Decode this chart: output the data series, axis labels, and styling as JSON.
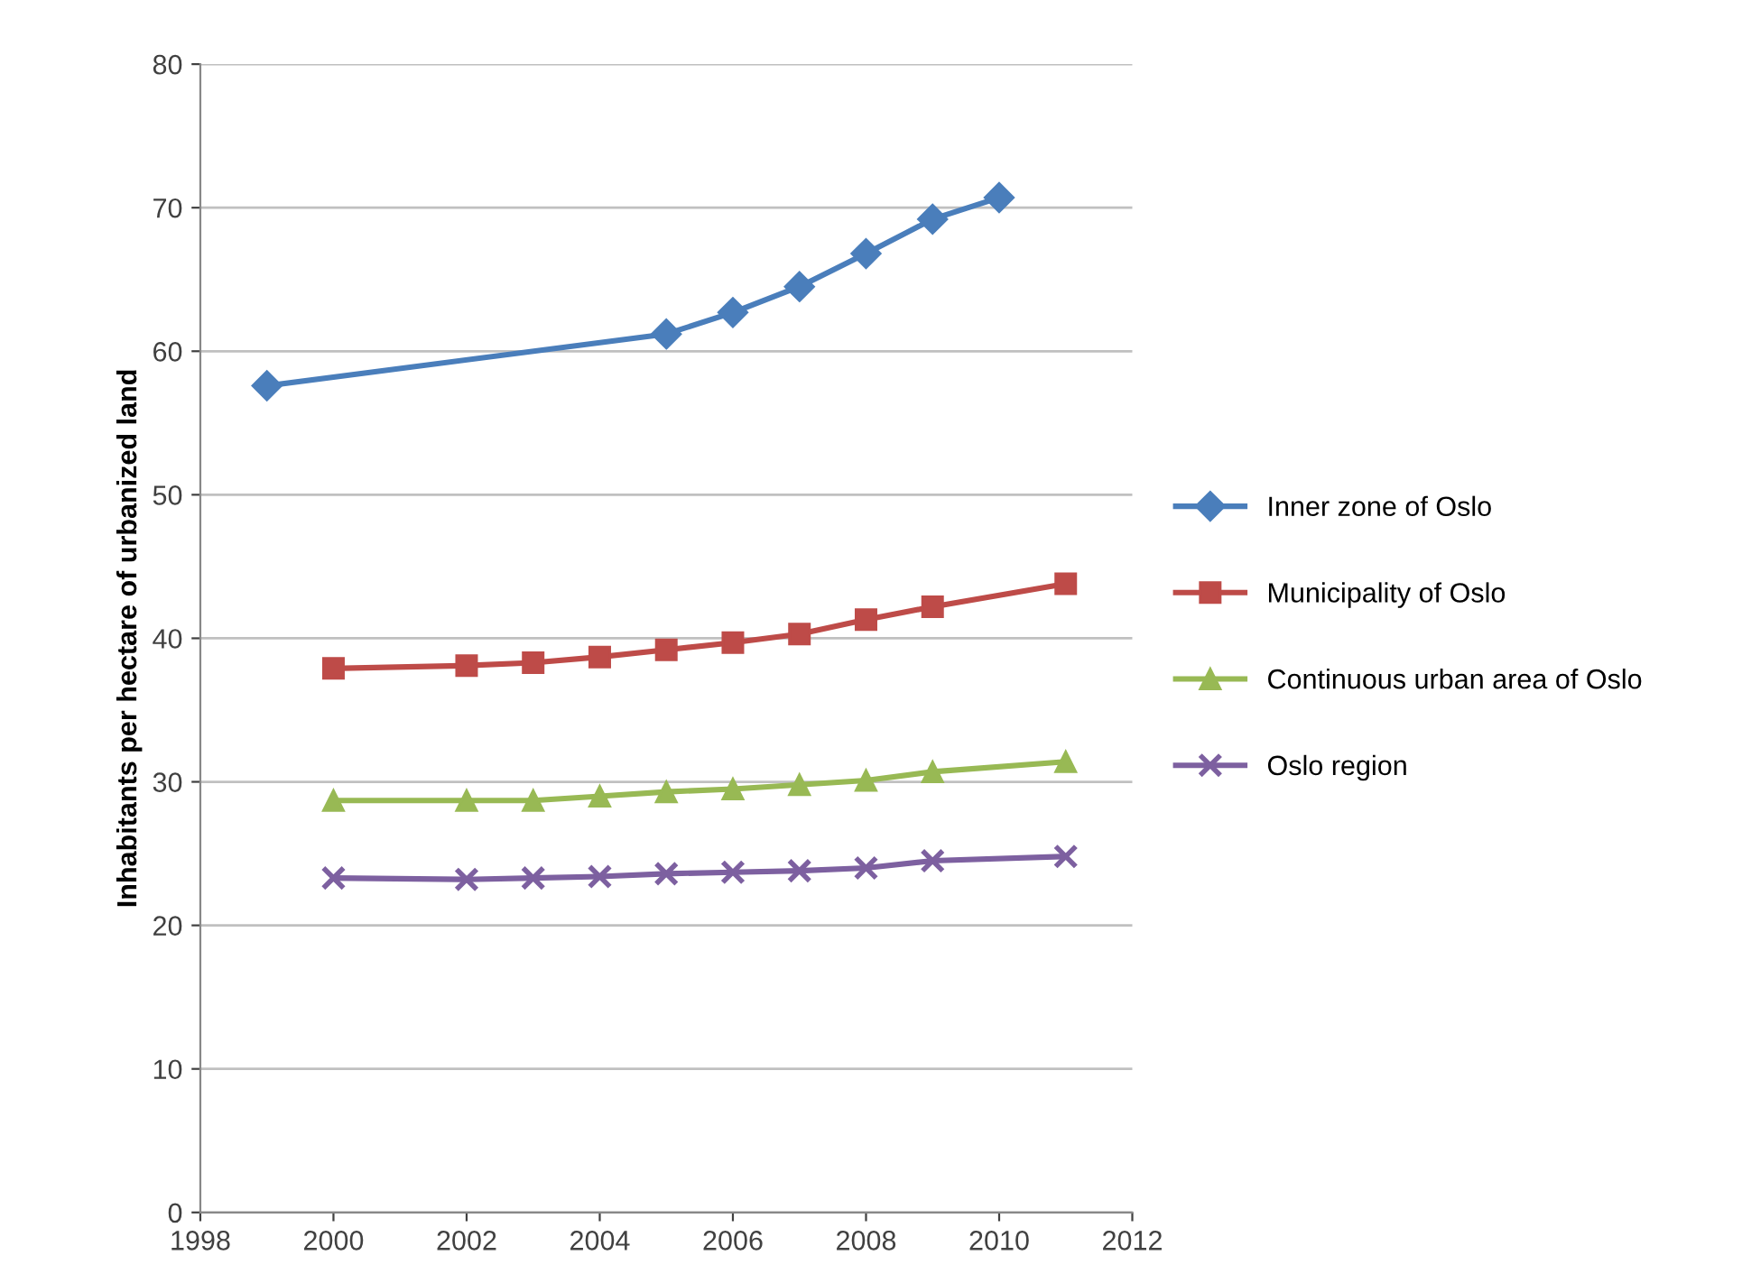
{
  "chart_data": {
    "type": "line",
    "ylabel": "Inhabitants per hectare of urbanized land",
    "xlim": [
      1998,
      2012
    ],
    "xticks": [
      1998,
      2000,
      2002,
      2004,
      2006,
      2008,
      2010,
      2012
    ],
    "ylim": [
      0,
      80
    ],
    "yticks": [
      0,
      10,
      20,
      30,
      40,
      50,
      60,
      70,
      80
    ],
    "grid": "y",
    "legend": "right",
    "series": [
      {
        "name": "Inner zone of Oslo",
        "color": "#4a7ebb",
        "marker": "diamond",
        "x": [
          1999,
          2005,
          2006,
          2007,
          2008,
          2009,
          2010
        ],
        "values": [
          57.6,
          61.2,
          62.7,
          64.5,
          66.8,
          69.2,
          70.7
        ]
      },
      {
        "name": "Municipality of Oslo",
        "color": "#be4b48",
        "marker": "square",
        "x": [
          2000,
          2002,
          2003,
          2004,
          2005,
          2006,
          2007,
          2008,
          2009,
          2011
        ],
        "values": [
          37.9,
          38.1,
          38.3,
          38.7,
          39.2,
          39.7,
          40.3,
          41.3,
          42.2,
          43.8
        ]
      },
      {
        "name": "Continuous urban area of Oslo",
        "color": "#98b954",
        "marker": "triangle",
        "x": [
          2000,
          2002,
          2003,
          2004,
          2005,
          2006,
          2007,
          2008,
          2009,
          2011
        ],
        "values": [
          28.7,
          28.7,
          28.7,
          29.0,
          29.3,
          29.5,
          29.8,
          30.1,
          30.7,
          31.4
        ]
      },
      {
        "name": "Oslo region",
        "color": "#7d60a0",
        "marker": "cross",
        "x": [
          2000,
          2002,
          2003,
          2004,
          2005,
          2006,
          2007,
          2008,
          2009,
          2011
        ],
        "values": [
          23.3,
          23.2,
          23.3,
          23.4,
          23.6,
          23.7,
          23.8,
          24.0,
          24.5,
          24.8
        ]
      }
    ]
  }
}
